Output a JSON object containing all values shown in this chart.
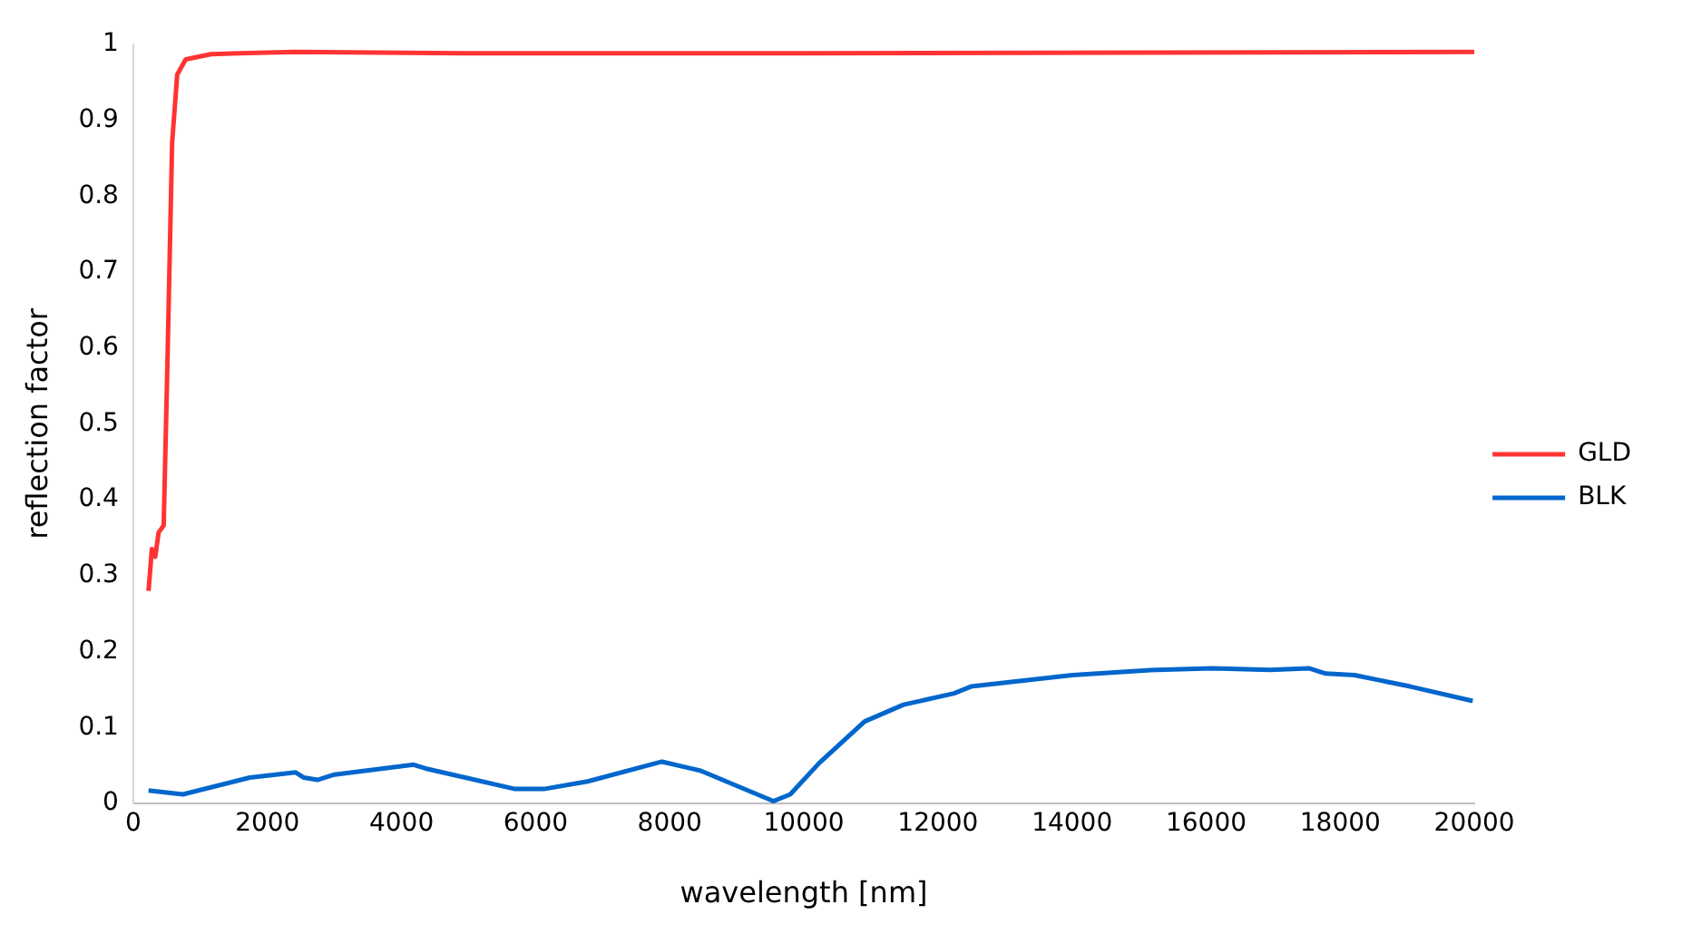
{
  "chart_data": {
    "type": "line",
    "xlabel": "wavelength [nm]",
    "ylabel": "reflection factor",
    "xlim": [
      0,
      20000
    ],
    "xticks": [
      0,
      2000,
      4000,
      6000,
      8000,
      10000,
      12000,
      14000,
      16000,
      18000,
      20000
    ],
    "ylim": [
      0,
      1
    ],
    "yticks": [
      0,
      0.1,
      0.2,
      0.3,
      0.4,
      0.5,
      0.6,
      0.7,
      0.8,
      0.9,
      1
    ],
    "grid": false,
    "legend": "right",
    "marker": "none",
    "line_style": "solid",
    "series": [
      {
        "name": "GLD",
        "color": "#ff3333",
        "x": [
          227,
          277,
          327,
          378,
          453,
          504,
          579,
          655,
          781,
          1159,
          2418,
          5000,
          10000,
          15000,
          20000
        ],
        "values": [
          0.28,
          0.335,
          0.325,
          0.357,
          0.366,
          0.56,
          0.87,
          0.96,
          0.98,
          0.987,
          0.99,
          0.988,
          0.988,
          0.989,
          0.99
        ]
      },
      {
        "name": "BLK",
        "color": "#0066cc",
        "x": [
          227,
          740,
          1738,
          2418,
          2544,
          2746,
          3000,
          4181,
          4358,
          5693,
          6121,
          6776,
          7884,
          8463,
          9547,
          9798,
          10227,
          10907,
          11486,
          12242,
          12494,
          14005,
          15264,
          16095,
          16952,
          17531,
          17783,
          18211,
          19043,
          19975
        ],
        "values": [
          0.017,
          0.012,
          0.034,
          0.041,
          0.034,
          0.031,
          0.038,
          0.051,
          0.046,
          0.019,
          0.019,
          0.029,
          0.055,
          0.043,
          0.003,
          0.012,
          0.053,
          0.108,
          0.13,
          0.145,
          0.154,
          0.169,
          0.176,
          0.178,
          0.176,
          0.178,
          0.171,
          0.169,
          0.154,
          0.135
        ]
      }
    ]
  }
}
